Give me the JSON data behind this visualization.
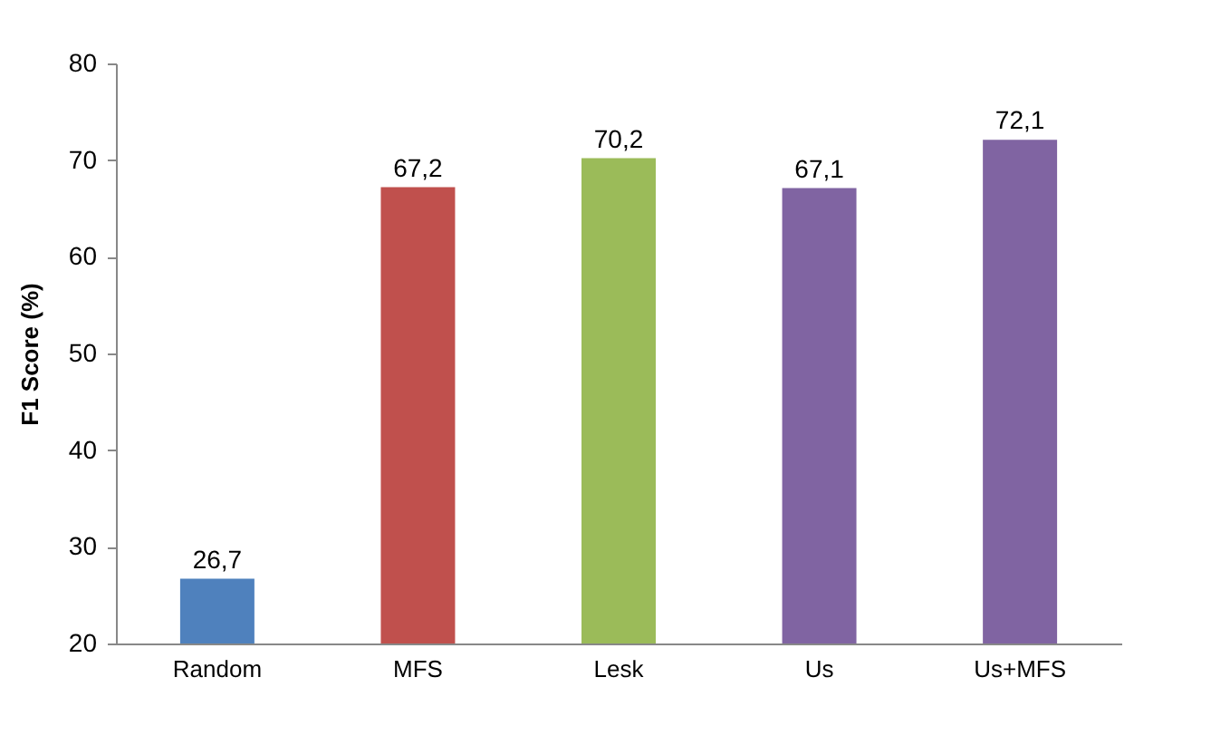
{
  "chart_data": {
    "type": "bar",
    "ylabel": "F1 Score (%)",
    "categories": [
      "Random",
      "MFS",
      "Lesk",
      "Us",
      "Us+MFS"
    ],
    "values": [
      26.7,
      67.2,
      70.2,
      67.1,
      72.1
    ],
    "value_labels": [
      "26,7",
      "67,2",
      "70,2",
      "67,1",
      "72,1"
    ],
    "colors": [
      "#4f81bd",
      "#c0504d",
      "#9bbb59",
      "#8064a2",
      "#8064a2"
    ],
    "ylim": [
      20,
      80
    ],
    "yticks": [
      20,
      30,
      40,
      50,
      60,
      70,
      80
    ],
    "grid": false
  }
}
